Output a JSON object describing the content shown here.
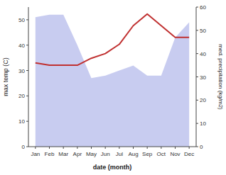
{
  "chart_data": {
    "type": "line",
    "xlabel": "date (month)",
    "ylabel": "max temp (C)",
    "y2label": "med. precipitation (kg/m2)",
    "categories": [
      "Jan",
      "Feb",
      "Mar",
      "Apr",
      "May",
      "Jun",
      "Jul",
      "Aug",
      "Sep",
      "Oct",
      "Nov",
      "Dec"
    ],
    "series": [
      {
        "type": "area",
        "color": "#aab0e8",
        "values": [
          51,
          52,
          52,
          40,
          27,
          28,
          30,
          32,
          28,
          28,
          43,
          49
        ]
      },
      {
        "type": "line",
        "color": "#c03030",
        "axis": "y2",
        "values": [
          36,
          35,
          35,
          35,
          38,
          40,
          44,
          52,
          57,
          52,
          47,
          47
        ]
      }
    ],
    "ylim": [
      0,
      55
    ],
    "yticks": [
      0,
      10,
      20,
      30,
      40,
      50
    ],
    "y2lim": [
      0,
      60
    ],
    "y2ticks": [
      0,
      10,
      20,
      30,
      40,
      50,
      60
    ],
    "grid": false
  }
}
